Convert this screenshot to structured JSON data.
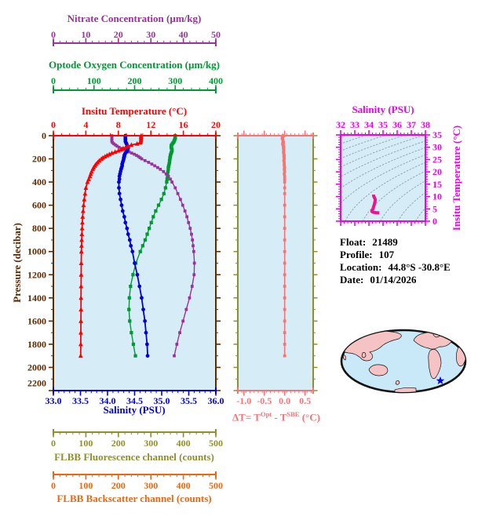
{
  "info": {
    "float_label": "Float:",
    "float_value": "21489",
    "profile_label": "Profile:",
    "profile_value": "107",
    "location_label": "Location:",
    "location_value": "44.8°S  -30.8°E",
    "date_label": "Date:",
    "date_value": "01/14/2026"
  },
  "labels": {
    "nitrate_title": "Nitrate Concentration (µm/kg)",
    "oxygen_title": "Optode Oxygen Concentration (µm/kg)",
    "temp_title": "Insitu Temperature (°C)",
    "pressure_title": "Pressure (decibar)",
    "salinity_title": "Salinity (PSU)",
    "fluor_title": "FLBB Fluorescence channel (counts)",
    "back_title": "FLBB Backscatter channel (counts)",
    "delta_p1": "ΔT= T",
    "delta_sup1": "Opt",
    "delta_p2": " - T",
    "delta_sup2": "SBE",
    "delta_p3": " (°C)",
    "ts_title": "Salinity (PSU)",
    "ts_right_title": "Insitu Temperature (°C)"
  },
  "colors": {
    "nitrate": "#993399",
    "oxygen": "#009933",
    "temperature": "#FF0000",
    "salinity": "#0000DD",
    "pressure": "#5C2A00",
    "fluorescence": "#8F8F2D",
    "backscatter": "#EE6611",
    "delta": "#F87474",
    "ts_frame": "#EE00EE",
    "ts_curve": "#EA1490",
    "plot_bg": "#D6EDF7",
    "contour": "#8AA0AE",
    "map_ocean": "#C9E9F8",
    "map_land": "#F5C3C3",
    "map_outline": "#111111",
    "marker_star": "#0000EE",
    "info_text": "#000000"
  },
  "chart_data": [
    {
      "id": "profiles",
      "type": "line",
      "title": "Vertical profiles vs pressure",
      "ylabel": "Pressure (decibar)",
      "ylim": [
        0,
        2200
      ],
      "y_tick_labels": [
        "0",
        "200",
        "400",
        "600",
        "800",
        "1000",
        "1200",
        "1400",
        "1600",
        "1800",
        "2000",
        "2200"
      ],
      "y_minor_step": 100,
      "x_axes": [
        {
          "id": "temperature",
          "label": "Insitu Temperature (°C)",
          "range": [
            0,
            20
          ],
          "tick_values": [
            0,
            4,
            8,
            12,
            16,
            20
          ],
          "tick_labels": [
            "0",
            "4",
            "8",
            "12",
            "16",
            "20"
          ],
          "minor_step": 1,
          "color": "#FF0000"
        },
        {
          "id": "salinity",
          "label": "Salinity (PSU)",
          "range": [
            33,
            36
          ],
          "tick_values": [
            33,
            33.5,
            34,
            34.5,
            35,
            35.5,
            36
          ],
          "tick_labels": [
            "33.0",
            "33.5",
            "34.0",
            "34.5",
            "35.0",
            "35.5",
            "36.0"
          ],
          "minor_step": 0.1,
          "color": "#0000DD"
        },
        {
          "id": "oxygen",
          "label": "Optode Oxygen Concentration (µm/kg)",
          "range": [
            0,
            400
          ],
          "tick_values": [
            0,
            100,
            200,
            300,
            400
          ],
          "tick_labels": [
            "0",
            "100",
            "200",
            "300",
            "400"
          ],
          "minor_step": 20,
          "color": "#009933"
        },
        {
          "id": "nitrate",
          "label": "Nitrate Concentration (µm/kg)",
          "range": [
            0,
            50
          ],
          "tick_values": [
            0,
            10,
            20,
            30,
            40,
            50
          ],
          "tick_labels": [
            "0",
            "10",
            "20",
            "30",
            "40",
            "50"
          ],
          "minor_step": 2,
          "color": "#993399"
        },
        {
          "id": "fluorescence",
          "label": "FLBB Fluorescence channel (counts)",
          "range": [
            0,
            500
          ],
          "tick_values": [
            0,
            100,
            200,
            300,
            400,
            500
          ],
          "tick_labels": [
            "0",
            "100",
            "200",
            "300",
            "400",
            "500"
          ],
          "minor_step": 20,
          "color": "#8F8F2D",
          "has_data": false
        },
        {
          "id": "backscatter",
          "label": "FLBB Backscatter channel (counts)",
          "range": [
            0,
            500
          ],
          "tick_values": [
            0,
            100,
            200,
            300,
            400,
            500
          ],
          "tick_labels": [
            "0",
            "100",
            "200",
            "300",
            "400",
            "500"
          ],
          "minor_step": 20,
          "color": "#EE6611",
          "has_data": false
        }
      ],
      "pressure": [
        0,
        10,
        20,
        30,
        40,
        50,
        60,
        70,
        80,
        90,
        100,
        110,
        120,
        130,
        140,
        150,
        160,
        170,
        180,
        190,
        200,
        215,
        230,
        245,
        260,
        275,
        290,
        310,
        330,
        350,
        375,
        400,
        450,
        500,
        550,
        600,
        650,
        700,
        750,
        800,
        850,
        900,
        950,
        1000,
        1100,
        1200,
        1300,
        1400,
        1500,
        1600,
        1700,
        1800,
        1900
      ],
      "series": [
        {
          "name": "Insitu Temperature",
          "axis": "temperature",
          "marker": "triangle",
          "color": "#FF0000",
          "values": [
            10.8,
            10.8,
            10.8,
            10.8,
            10.78,
            10.75,
            10.7,
            10.3,
            9.6,
            9.2,
            8.9,
            8.6,
            8.3,
            8.0,
            7.6,
            7.2,
            6.9,
            6.6,
            6.35,
            6.1,
            5.9,
            5.65,
            5.45,
            5.25,
            5.1,
            4.95,
            4.85,
            4.7,
            4.6,
            4.5,
            4.35,
            4.2,
            4.0,
            3.9,
            3.8,
            3.72,
            3.66,
            3.6,
            3.57,
            3.54,
            3.51,
            3.49,
            3.47,
            3.45,
            3.43,
            3.42,
            3.41,
            3.4,
            3.4,
            3.39,
            3.38,
            3.37,
            3.36
          ]
        },
        {
          "name": "Salinity",
          "axis": "salinity",
          "marker": "circle",
          "color": "#0000DD",
          "values": [
            34.33,
            34.33,
            34.33,
            34.33,
            34.33,
            34.33,
            34.34,
            34.35,
            34.36,
            34.37,
            34.38,
            34.38,
            34.37,
            34.36,
            34.35,
            34.33,
            34.32,
            34.31,
            34.31,
            34.3,
            34.3,
            34.29,
            34.28,
            34.27,
            34.27,
            34.26,
            34.25,
            34.24,
            34.23,
            34.22,
            34.22,
            34.21,
            34.21,
            34.22,
            34.24,
            34.26,
            34.28,
            34.31,
            34.33,
            34.36,
            34.38,
            34.41,
            34.43,
            34.46,
            34.5,
            34.55,
            34.59,
            34.63,
            34.66,
            34.69,
            34.71,
            34.73,
            34.74
          ]
        },
        {
          "name": "Optode Oxygen",
          "axis": "oxygen",
          "marker": "square",
          "color": "#009933",
          "values": [
            300,
            300,
            300,
            299,
            298,
            297,
            295,
            293,
            291,
            290,
            290,
            291,
            292,
            292,
            291,
            290,
            289,
            288,
            288,
            287,
            287,
            286,
            286,
            285,
            284,
            283,
            283,
            282,
            281,
            281,
            280,
            279,
            276,
            272,
            266,
            259,
            252,
            246,
            241,
            236,
            231,
            226,
            220,
            214,
            203,
            196,
            190,
            187,
            186,
            188,
            192,
            197,
            202
          ]
        },
        {
          "name": "Nitrate",
          "axis": "nitrate",
          "marker": "square",
          "color": "#993399",
          "values": [
            18,
            18,
            18,
            18,
            18,
            18,
            18.2,
            18.6,
            19.1,
            19.6,
            20.2,
            20.9,
            21.7,
            22.5,
            23.3,
            24.1,
            24.9,
            25.6,
            26.2,
            26.7,
            27.2,
            28.2,
            29.3,
            30.3,
            31.2,
            32.1,
            32.9,
            33.9,
            34.7,
            35.4,
            36.0,
            36.5,
            37.5,
            38.3,
            39.1,
            39.8,
            40.5,
            41.1,
            41.6,
            42.1,
            42.5,
            42.8,
            43.0,
            43.2,
            43.4,
            43.3,
            42.7,
            41.9,
            40.9,
            39.9,
            38.9,
            38.0,
            37.2
          ]
        }
      ]
    },
    {
      "id": "delta_temperature",
      "type": "line",
      "xlabel": "ΔT= T^Opt - T^SBE (°C)",
      "xlim": [
        -1.15,
        0.7
      ],
      "x_tick_values": [
        -1.0,
        -0.5,
        0.0,
        0.5
      ],
      "x_tick_labels": [
        "-1.0",
        "-0.5",
        "0.0",
        "0.5"
      ],
      "x_minor_step": 0.1,
      "ylim": [
        0,
        2200
      ],
      "color": "#F87474",
      "pressure": [
        0,
        10,
        20,
        30,
        40,
        50,
        60,
        70,
        80,
        90,
        100,
        110,
        120,
        130,
        140,
        150,
        160,
        170,
        180,
        190,
        200,
        215,
        230,
        245,
        260,
        275,
        290,
        310,
        330,
        350,
        375,
        400,
        450,
        500,
        600,
        700,
        800,
        900,
        1000,
        1100,
        1200,
        1300,
        1400,
        1500,
        1600,
        1700,
        1800,
        1900
      ],
      "values": [
        -0.03,
        -0.05,
        -0.06,
        -0.05,
        -0.04,
        -0.04,
        -0.03,
        -0.05,
        -0.04,
        -0.03,
        -0.02,
        -0.03,
        -0.02,
        -0.02,
        -0.03,
        -0.02,
        -0.02,
        -0.01,
        -0.02,
        -0.01,
        -0.01,
        -0.02,
        -0.01,
        -0.01,
        -0.01,
        0,
        -0.01,
        0,
        -0.01,
        0,
        0,
        0,
        0,
        0,
        0,
        0,
        0,
        0,
        0,
        0,
        0,
        0,
        0,
        0,
        0,
        0,
        0,
        0
      ]
    },
    {
      "id": "ts_diagram",
      "type": "line",
      "title": "Salinity (PSU)",
      "ylabel": "Insitu Temperature (°C)",
      "xlim": [
        32,
        38
      ],
      "ylim": [
        0,
        35
      ],
      "x_tick_labels": [
        "32",
        "33",
        "34",
        "35",
        "36",
        "37",
        "38"
      ],
      "x_minor_step": 0.25,
      "y_tick_labels": [
        "0",
        "5",
        "10",
        "15",
        "20",
        "25",
        "30",
        "35"
      ],
      "y_minor_step": 1,
      "sigma_contours": {
        "from": 18,
        "to": 30,
        "step": 1
      },
      "salinity": [
        34.33,
        34.33,
        34.35,
        34.42,
        34.45,
        34.45,
        34.43,
        34.4,
        34.37,
        34.34,
        34.31,
        34.28,
        34.25,
        34.22,
        34.21,
        34.21,
        34.24,
        34.28,
        34.33,
        34.38,
        34.43,
        34.48,
        34.54,
        34.6,
        34.66,
        34.71,
        34.74
      ],
      "temperature": [
        10.8,
        10.6,
        10.0,
        9.2,
        8.8,
        8.4,
        7.8,
        7.2,
        6.5,
        6.0,
        5.3,
        4.9,
        4.6,
        4.3,
        4.1,
        3.95,
        3.8,
        3.7,
        3.6,
        3.55,
        3.5,
        3.45,
        3.42,
        3.4,
        3.38,
        3.37,
        3.36
      ]
    },
    {
      "id": "location_map",
      "type": "map",
      "marker": {
        "shape": "star",
        "color": "#0000EE"
      }
    }
  ]
}
